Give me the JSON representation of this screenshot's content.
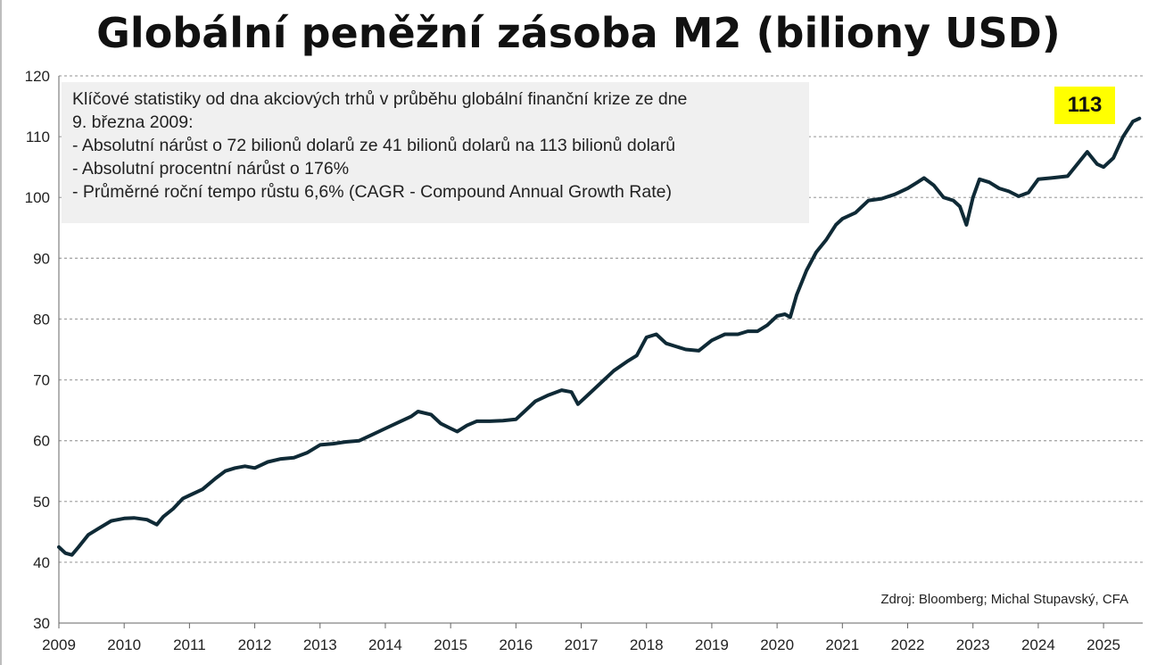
{
  "chart_data": {
    "type": "line",
    "title": "Globální peněžní zásoba M2 (biliony USD)",
    "xlabel": "",
    "ylabel": "",
    "xlim": [
      2009.0,
      2025.6
    ],
    "ylim": [
      30,
      120
    ],
    "yticks": [
      "30",
      "40",
      "50",
      "60",
      "70",
      "80",
      "90",
      "100",
      "110",
      "120"
    ],
    "xticks": [
      "2009",
      "2010",
      "2011",
      "2012",
      "2013",
      "2014",
      "2015",
      "2016",
      "2017",
      "2018",
      "2019",
      "2020",
      "2021",
      "2022",
      "2023",
      "2024",
      "2025"
    ],
    "grid": "horizontal dashed",
    "series": [
      {
        "color": "#0f2a36",
        "x": [
          2009.0,
          2009.1,
          2009.2,
          2009.3,
          2009.45,
          2009.6,
          2009.8,
          2010.0,
          2010.15,
          2010.35,
          2010.5,
          2010.6,
          2010.75,
          2010.9,
          2011.0,
          2011.2,
          2011.4,
          2011.55,
          2011.7,
          2011.85,
          2012.0,
          2012.2,
          2012.4,
          2012.6,
          2012.8,
          2013.0,
          2013.2,
          2013.4,
          2013.6,
          2013.8,
          2014.0,
          2014.2,
          2014.4,
          2014.5,
          2014.7,
          2014.85,
          2015.0,
          2015.1,
          2015.25,
          2015.4,
          2015.6,
          2015.8,
          2016.0,
          2016.1,
          2016.3,
          2016.5,
          2016.7,
          2016.85,
          2016.95,
          2017.1,
          2017.3,
          2017.5,
          2017.7,
          2017.85,
          2018.0,
          2018.15,
          2018.3,
          2018.45,
          2018.6,
          2018.8,
          2019.0,
          2019.2,
          2019.4,
          2019.55,
          2019.7,
          2019.85,
          2020.0,
          2020.12,
          2020.2,
          2020.3,
          2020.45,
          2020.6,
          2020.75,
          2020.9,
          2021.0,
          2021.2,
          2021.4,
          2021.6,
          2021.8,
          2022.0,
          2022.15,
          2022.25,
          2022.4,
          2022.55,
          2022.7,
          2022.8,
          2022.9,
          2023.0,
          2023.1,
          2023.25,
          2023.4,
          2023.55,
          2023.7,
          2023.85,
          2024.0,
          2024.2,
          2024.45,
          2024.6,
          2024.75,
          2024.9,
          2025.0,
          2025.15,
          2025.3,
          2025.45,
          2025.55
        ],
        "y": [
          42.5,
          41.5,
          41.2,
          42.5,
          44.5,
          45.5,
          46.8,
          47.2,
          47.3,
          47.0,
          46.2,
          47.5,
          48.8,
          50.5,
          51.0,
          52.0,
          53.8,
          55.0,
          55.5,
          55.8,
          55.5,
          56.5,
          57.0,
          57.2,
          58.0,
          59.3,
          59.5,
          59.8,
          60.0,
          61.0,
          62.0,
          63.0,
          64.0,
          64.8,
          64.3,
          62.8,
          62.0,
          61.5,
          62.5,
          63.2,
          63.2,
          63.3,
          63.5,
          64.5,
          66.5,
          67.5,
          68.3,
          68.0,
          66.0,
          67.5,
          69.5,
          71.5,
          73.0,
          74.0,
          77.0,
          77.5,
          76.0,
          75.5,
          75.0,
          74.8,
          76.5,
          77.5,
          77.5,
          78.0,
          78.0,
          79.0,
          80.5,
          80.8,
          80.3,
          84.0,
          88.0,
          91.0,
          93.0,
          95.5,
          96.5,
          97.5,
          99.5,
          99.8,
          100.5,
          101.5,
          102.5,
          103.2,
          102.0,
          100.0,
          99.5,
          98.5,
          95.5,
          100.0,
          103.0,
          102.5,
          101.5,
          101.0,
          100.2,
          100.8,
          103.0,
          103.2,
          103.5,
          105.5,
          107.5,
          105.5,
          105.0,
          106.5,
          110.0,
          112.5,
          113.0
        ]
      }
    ],
    "annotations": {
      "stats_lines": [
        "Klíčové statistiky od dna akciových trhů v průběhu globální finanční krize ze dne",
        "9. března 2009:",
        "- Absolutní nárůst o 72 bilionů dolarů ze 41 bilionů dolarů na 113 bilionů dolarů",
        "- Absolutní procentní nárůst o 176%",
        "- Průměrné roční tempo růstu 6,6% (CAGR - Compound Annual Growth Rate)"
      ],
      "end_value": "113",
      "end_value_color": "#ffff00",
      "source": "Zdroj: Bloomberg; Michal Stupavský, CFA"
    }
  }
}
